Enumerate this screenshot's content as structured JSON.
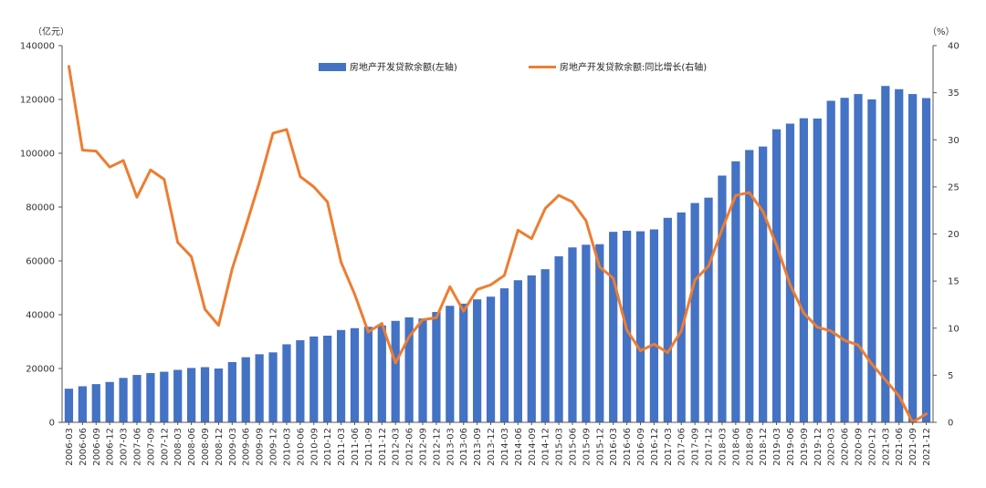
{
  "chart_data": {
    "type": "bar+line",
    "title": "",
    "left_axis": {
      "unit": "（亿元）",
      "ticks": [
        0,
        20000,
        40000,
        60000,
        80000,
        100000,
        120000,
        140000
      ],
      "ylim": [
        0,
        140000
      ]
    },
    "right_axis": {
      "unit": "（%）",
      "ticks": [
        0,
        5,
        10,
        15,
        20,
        25,
        30,
        35,
        40
      ],
      "ylim": [
        0,
        40
      ]
    },
    "legend": {
      "placement": "top-center"
    },
    "categories": [
      "2006-03",
      "2006-06",
      "2006-09",
      "2006-12",
      "2007-03",
      "2007-06",
      "2007-09",
      "2007-12",
      "2008-03",
      "2008-06",
      "2008-09",
      "2008-12",
      "2009-03",
      "2009-06",
      "2009-09",
      "2009-12",
      "2010-03",
      "2010-06",
      "2010-09",
      "2010-12",
      "2011-03",
      "2011-06",
      "2011-09",
      "2011-12",
      "2012-03",
      "2012-06",
      "2012-09",
      "2012-12",
      "2013-03",
      "2013-06",
      "2013-09",
      "2013-12",
      "2014-03",
      "2014-06",
      "2014-09",
      "2014-12",
      "2015-03",
      "2015-06",
      "2015-09",
      "2015-12",
      "2016-03",
      "2016-06",
      "2016-09",
      "2016-12",
      "2017-03",
      "2017-06",
      "2017-09",
      "2017-12",
      "2018-03",
      "2018-06",
      "2018-09",
      "2018-12",
      "2019-03",
      "2019-06",
      "2019-09",
      "2019-12",
      "2020-03",
      "2020-06",
      "2020-09",
      "2020-12",
      "2021-03",
      "2021-06",
      "2021-09",
      "2021-12"
    ],
    "series": [
      {
        "name": "房地产开发贷款余额(左轴)",
        "kind": "bar",
        "axis": "left",
        "color": "#4472C4",
        "values": [
          12500,
          13400,
          14200,
          15000,
          16500,
          17600,
          18300,
          18800,
          19500,
          20200,
          20500,
          20000,
          22400,
          24200,
          25300,
          26000,
          29000,
          30500,
          31900,
          32200,
          34300,
          35000,
          35500,
          36000,
          37700,
          39000,
          38600,
          41000,
          43300,
          44100,
          45700,
          46700,
          49800,
          52800,
          54600,
          56900,
          61700,
          65000,
          66000,
          66200,
          70800,
          71200,
          71000,
          71700,
          76000,
          78000,
          81500,
          83500,
          91700,
          97000,
          101200,
          102500,
          108900,
          111000,
          113000,
          112900,
          119500,
          120600,
          122000,
          120000,
          125000,
          123800,
          122000,
          120500
        ]
      },
      {
        "name": "房地产开发贷款余额:同比增长(右轴)",
        "kind": "line",
        "axis": "right",
        "color": "#ED7D31",
        "values": [
          37.8,
          28.9,
          28.8,
          27.1,
          27.8,
          23.9,
          26.8,
          25.8,
          19.1,
          17.6,
          12.0,
          10.3,
          16.3,
          20.8,
          25.5,
          30.7,
          31.1,
          26.1,
          25.0,
          23.4,
          17.0,
          13.6,
          9.6,
          10.5,
          6.3,
          9.1,
          10.9,
          11.1,
          14.4,
          11.8,
          14.1,
          14.6,
          15.6,
          20.4,
          19.5,
          22.7,
          24.1,
          23.4,
          21.4,
          16.5,
          15.3,
          9.8,
          7.6,
          8.3,
          7.4,
          9.7,
          15.1,
          16.6,
          20.5,
          24.1,
          24.4,
          22.4,
          18.8,
          14.6,
          11.6,
          10.1,
          9.7,
          8.7,
          8.2,
          6.2,
          4.5,
          2.8,
          0.0,
          0.9
        ]
      }
    ]
  }
}
